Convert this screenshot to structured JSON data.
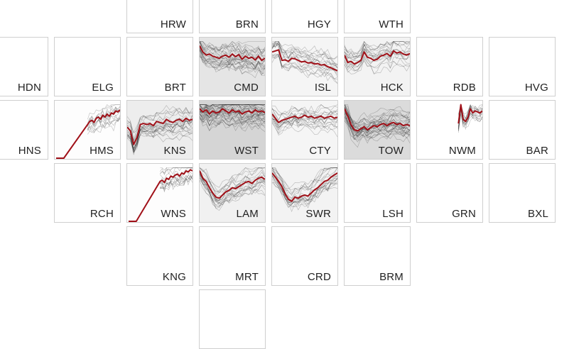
{
  "chart_data": {
    "type": "line",
    "description_of_layout": "geographic tile grid; each tile is a small-multiple line chart",
    "colors": {
      "highlight": "#a01018",
      "traces": "#000000",
      "tile_border": "#cfcfcf"
    },
    "tiles": [
      {
        "code": "HRW",
        "row": 0,
        "col": 2,
        "series": []
      },
      {
        "code": "BRN",
        "row": 0,
        "col": 3,
        "series": []
      },
      {
        "code": "HGY",
        "row": 0,
        "col": 4,
        "series": []
      },
      {
        "code": "WTH",
        "row": 0,
        "col": 5,
        "series": []
      },
      {
        "code": "HDN",
        "row": 1,
        "col": 0,
        "series": []
      },
      {
        "code": "ELG",
        "row": 1,
        "col": 1,
        "series": []
      },
      {
        "code": "BRT",
        "row": 1,
        "col": 2,
        "series": []
      },
      {
        "code": "CMD",
        "row": 1,
        "col": 3,
        "shade": 0.22,
        "highlight": [
          0.9,
          0.78,
          0.72,
          0.74,
          0.7,
          0.68,
          0.66,
          0.7,
          0.72,
          0.68,
          0.74,
          0.69,
          0.73,
          0.64,
          0.7,
          0.66,
          0.68,
          0.63,
          0.7,
          0.62,
          0.66
        ]
      },
      {
        "code": "ISL",
        "row": 1,
        "col": 4,
        "shade": 0.08,
        "highlight": [
          0.78,
          0.8,
          0.82,
          0.62,
          0.63,
          0.6,
          0.66,
          0.65,
          0.62,
          0.59,
          0.6,
          0.57,
          0.58,
          0.55,
          0.56,
          0.53,
          0.54,
          0.5,
          0.48,
          0.45,
          0.42
        ]
      },
      {
        "code": "HCK",
        "row": 1,
        "col": 5,
        "shade": 0.1,
        "highlight": [
          0.72,
          0.58,
          0.6,
          0.55,
          0.58,
          0.62,
          0.78,
          0.68,
          0.66,
          0.62,
          0.64,
          0.7,
          0.72,
          0.75,
          0.7,
          0.8,
          0.76,
          0.78,
          0.74,
          0.72,
          0.75
        ]
      },
      {
        "code": "RDB",
        "row": 1,
        "col": 6,
        "series": []
      },
      {
        "code": "HVG",
        "row": 1,
        "col": 7,
        "series": []
      },
      {
        "code": "HNS",
        "row": 2,
        "col": 0,
        "series": []
      },
      {
        "code": "HMS",
        "row": 2,
        "col": 1,
        "shade": 0.02,
        "start": 0.33,
        "highlight": [
          0,
          0,
          0,
          0,
          0,
          0.6,
          0.66,
          0.68,
          0.64,
          0.72,
          0.74,
          0.7,
          0.78,
          0.74,
          0.8,
          0.76,
          0.82,
          0.8,
          0.86,
          0.84,
          0.88
        ]
      },
      {
        "code": "KNS",
        "row": 2,
        "col": 2,
        "shade": 0.15,
        "highlight": [
          0.55,
          0.48,
          0.22,
          0.35,
          0.6,
          0.62,
          0.6,
          0.62,
          0.58,
          0.66,
          0.64,
          0.62,
          0.7,
          0.66,
          0.64,
          0.68,
          0.7,
          0.66,
          0.72,
          0.68,
          0.7
        ]
      },
      {
        "code": "WST",
        "row": 2,
        "col": 3,
        "shade": 0.35,
        "highlight": [
          0.9,
          0.84,
          0.88,
          0.8,
          0.86,
          0.82,
          0.84,
          0.9,
          0.86,
          0.82,
          0.88,
          0.84,
          0.86,
          0.8,
          0.84,
          0.86,
          0.82,
          0.88,
          0.84,
          0.86,
          0.83
        ]
      },
      {
        "code": "CTY",
        "row": 2,
        "col": 4,
        "shade": 0.08,
        "highlight": [
          0.8,
          0.72,
          0.64,
          0.68,
          0.7,
          0.72,
          0.74,
          0.76,
          0.72,
          0.74,
          0.78,
          0.74,
          0.76,
          0.72,
          0.74,
          0.76,
          0.72,
          0.74,
          0.76,
          0.72,
          0.74
        ]
      },
      {
        "code": "TOW",
        "row": 2,
        "col": 5,
        "shade": 0.3,
        "highlight": [
          0.9,
          0.76,
          0.6,
          0.5,
          0.48,
          0.52,
          0.56,
          0.5,
          0.54,
          0.58,
          0.56,
          0.6,
          0.62,
          0.58,
          0.62,
          0.64,
          0.6,
          0.62,
          0.58,
          0.6,
          0.58
        ]
      },
      {
        "code": "NWM",
        "row": 2,
        "col": 6,
        "shade": 0.0,
        "start": 0.62,
        "highlight": [
          0.62,
          0.98,
          0.7,
          0.66,
          0.74,
          0.9,
          0.82,
          0.86,
          0.84,
          0.82,
          0.86
        ]
      },
      {
        "code": "BAR",
        "row": 2,
        "col": 7,
        "series": []
      },
      {
        "code": "RCH",
        "row": 3,
        "col": 1,
        "series": []
      },
      {
        "code": "WNS",
        "row": 3,
        "col": 2,
        "shade": 0.02,
        "start": 0.33,
        "highlight": [
          0,
          0,
          0,
          0,
          0,
          0.72,
          0.74,
          0.7,
          0.78,
          0.76,
          0.82,
          0.8,
          0.84,
          0.86,
          0.82,
          0.88,
          0.86,
          0.92,
          0.9,
          0.94,
          0.92
        ]
      },
      {
        "code": "LAM",
        "row": 3,
        "col": 3,
        "shade": 0.12,
        "highlight": [
          0.92,
          0.78,
          0.72,
          0.6,
          0.5,
          0.42,
          0.4,
          0.46,
          0.52,
          0.55,
          0.6,
          0.58,
          0.62,
          0.66,
          0.7,
          0.72,
          0.68,
          0.74,
          0.78,
          0.8,
          0.76
        ]
      },
      {
        "code": "SWR",
        "row": 3,
        "col": 4,
        "shade": 0.1,
        "highlight": [
          0.88,
          0.8,
          0.72,
          0.62,
          0.48,
          0.38,
          0.34,
          0.42,
          0.4,
          0.44,
          0.46,
          0.44,
          0.5,
          0.56,
          0.6,
          0.66,
          0.72,
          0.74,
          0.8,
          0.84,
          0.88
        ]
      },
      {
        "code": "LSH",
        "row": 3,
        "col": 5,
        "series": []
      },
      {
        "code": "GRN",
        "row": 3,
        "col": 6,
        "series": []
      },
      {
        "code": "BXL",
        "row": 3,
        "col": 7,
        "series": []
      },
      {
        "code": "KNG",
        "row": 4,
        "col": 2,
        "series": []
      },
      {
        "code": "MRT",
        "row": 4,
        "col": 3,
        "series": []
      },
      {
        "code": "CRD",
        "row": 4,
        "col": 4,
        "series": []
      },
      {
        "code": "BRM",
        "row": 4,
        "col": 5,
        "series": []
      },
      {
        "code": "",
        "row": 5,
        "col": 3,
        "series": []
      }
    ]
  }
}
